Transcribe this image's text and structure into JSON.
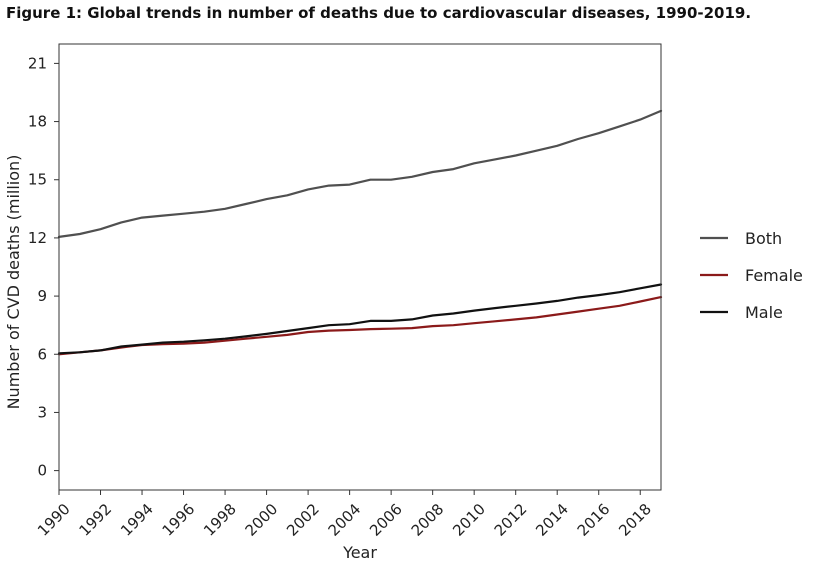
{
  "figure": {
    "title": "Figure 1: Global trends in number of deaths due to cardiovascular diseases, 1990-2019."
  },
  "chart_data": {
    "type": "line",
    "title": "Figure 1: Global trends in number of deaths due to cardiovascular diseases, 1990-2019.",
    "xlabel": "Year",
    "ylabel": "Number of CVD deaths (million)",
    "xlim": [
      1990,
      2019
    ],
    "ylim": [
      -1,
      22
    ],
    "xticks": [
      1990,
      1992,
      1994,
      1996,
      1998,
      2000,
      2002,
      2004,
      2006,
      2008,
      2010,
      2012,
      2014,
      2016,
      2018
    ],
    "yticks": [
      0,
      3,
      6,
      9,
      12,
      15,
      18,
      21
    ],
    "grid": false,
    "legend_position": "right",
    "x": [
      1990,
      1991,
      1992,
      1993,
      1994,
      1995,
      1996,
      1997,
      1998,
      1999,
      2000,
      2001,
      2002,
      2003,
      2004,
      2005,
      2006,
      2007,
      2008,
      2009,
      2010,
      2011,
      2012,
      2013,
      2014,
      2015,
      2016,
      2017,
      2018,
      2019
    ],
    "series": [
      {
        "name": "Both",
        "color": "#505050",
        "values": [
          12.05,
          12.2,
          12.45,
          12.8,
          13.05,
          13.15,
          13.25,
          13.35,
          13.5,
          13.75,
          14.0,
          14.2,
          14.5,
          14.7,
          14.75,
          15.0,
          15.0,
          15.15,
          15.4,
          15.55,
          15.85,
          16.05,
          16.25,
          16.5,
          16.75,
          17.1,
          17.4,
          17.75,
          18.1,
          18.55
        ]
      },
      {
        "name": "Female",
        "color": "#8b1a1a",
        "values": [
          6.0,
          6.1,
          6.2,
          6.35,
          6.48,
          6.52,
          6.55,
          6.6,
          6.7,
          6.8,
          6.9,
          7.0,
          7.15,
          7.22,
          7.25,
          7.3,
          7.32,
          7.35,
          7.45,
          7.5,
          7.6,
          7.7,
          7.8,
          7.9,
          8.05,
          8.2,
          8.35,
          8.5,
          8.72,
          8.95
        ]
      },
      {
        "name": "Male",
        "color": "#111111",
        "values": [
          6.05,
          6.1,
          6.2,
          6.4,
          6.5,
          6.6,
          6.65,
          6.72,
          6.8,
          6.92,
          7.05,
          7.2,
          7.35,
          7.5,
          7.55,
          7.72,
          7.72,
          7.8,
          8.0,
          8.1,
          8.25,
          8.38,
          8.5,
          8.62,
          8.75,
          8.92,
          9.05,
          9.2,
          9.4,
          9.6
        ]
      }
    ]
  }
}
